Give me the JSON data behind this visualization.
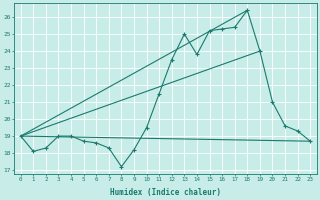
{
  "xlabel": "Humidex (Indice chaleur)",
  "ylabel": "",
  "background_color": "#c8ede8",
  "grid_color": "#ffffff",
  "line_color": "#1a7a6e",
  "xlim": [
    -0.5,
    23.5
  ],
  "ylim": [
    16.8,
    26.8
  ],
  "yticks": [
    17,
    18,
    19,
    20,
    21,
    22,
    23,
    24,
    25,
    26
  ],
  "xticks": [
    0,
    1,
    2,
    3,
    4,
    5,
    6,
    7,
    8,
    9,
    10,
    11,
    12,
    13,
    14,
    15,
    16,
    17,
    18,
    19,
    20,
    21,
    22,
    23
  ],
  "series1_x": [
    0,
    1,
    2,
    3,
    4,
    5,
    6,
    7,
    8,
    9,
    10,
    11,
    12,
    13,
    14,
    15,
    16,
    17,
    18,
    19,
    20,
    21,
    22,
    23
  ],
  "series1_y": [
    19.0,
    18.1,
    18.3,
    19.0,
    19.0,
    18.7,
    18.6,
    18.3,
    17.2,
    18.2,
    19.5,
    21.5,
    23.5,
    25.0,
    23.8,
    25.2,
    25.3,
    25.4,
    26.4,
    24.0,
    21.0,
    19.6,
    19.3,
    18.7
  ],
  "series2_x": [
    0,
    23
  ],
  "series2_y": [
    19.0,
    18.7
  ],
  "series3_x": [
    0,
    19
  ],
  "series3_y": [
    19.0,
    24.0
  ],
  "series4_x": [
    0,
    18
  ],
  "series4_y": [
    19.0,
    26.4
  ]
}
